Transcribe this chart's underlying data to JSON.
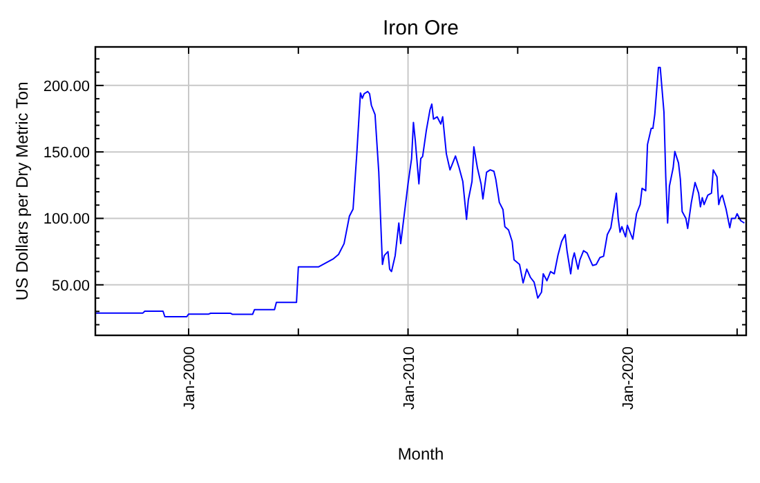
{
  "chart_data": {
    "type": "line",
    "title": "Iron Ore",
    "xlabel": "Month",
    "ylabel": "US Dollars per Dry Metric Ton",
    "x": [
      "1995-10",
      "1997-12",
      "1998-01",
      "1998-11",
      "1998-12",
      "1999-12",
      "2000-01",
      "2000-12",
      "2001-01",
      "2001-12",
      "2002-01",
      "2002-12",
      "2003-01",
      "2003-12",
      "2004-01",
      "2004-12",
      "2005-01",
      "2005-12",
      "2006-08",
      "2006-11",
      "2007-02",
      "2007-05",
      "2007-07",
      "2007-09",
      "2007-11",
      "2007-12",
      "2008-01",
      "2008-03",
      "2008-04",
      "2008-05",
      "2008-07",
      "2008-09",
      "2008-10",
      "2008-11",
      "2008-12",
      "2009-02",
      "2009-03",
      "2009-04",
      "2009-06",
      "2009-08",
      "2009-09",
      "2009-11",
      "2010-01",
      "2010-03",
      "2010-04",
      "2010-05",
      "2010-07",
      "2010-08",
      "2010-09",
      "2010-11",
      "2011-01",
      "2011-02",
      "2011-03",
      "2011-05",
      "2011-07",
      "2011-08",
      "2011-10",
      "2011-12",
      "2012-01",
      "2012-03",
      "2012-05",
      "2012-07",
      "2012-09",
      "2012-10",
      "2012-12",
      "2013-01",
      "2013-03",
      "2013-05",
      "2013-06",
      "2013-08",
      "2013-10",
      "2013-12",
      "2014-01",
      "2014-03",
      "2014-05",
      "2014-06",
      "2014-08",
      "2014-10",
      "2014-11",
      "2015-02",
      "2015-04",
      "2015-06",
      "2015-08",
      "2015-10",
      "2015-11",
      "2015-12",
      "2016-02",
      "2016-03",
      "2016-05",
      "2016-07",
      "2016-09",
      "2016-11",
      "2017-01",
      "2017-03",
      "2017-04",
      "2017-06",
      "2017-07",
      "2017-08",
      "2017-10",
      "2017-11",
      "2018-01",
      "2018-03",
      "2018-06",
      "2018-08",
      "2018-10",
      "2018-12",
      "2019-02",
      "2019-04",
      "2019-05",
      "2019-07",
      "2019-08",
      "2019-09",
      "2019-10",
      "2019-12",
      "2020-01",
      "2020-03",
      "2020-04",
      "2020-06",
      "2020-08",
      "2020-09",
      "2020-11",
      "2020-12",
      "2021-02",
      "2021-03",
      "2021-04",
      "2021-06",
      "2021-07",
      "2021-09",
      "2021-10",
      "2021-11",
      "2021-12",
      "2022-02",
      "2022-03",
      "2022-05",
      "2022-06",
      "2022-07",
      "2022-09",
      "2022-10",
      "2022-12",
      "2023-02",
      "2023-04",
      "2023-05",
      "2023-06",
      "2023-07",
      "2023-09",
      "2023-11",
      "2023-12",
      "2024-02",
      "2024-03",
      "2024-04",
      "2024-05",
      "2024-07",
      "2024-09",
      "2024-10",
      "2024-12",
      "2025-01",
      "2025-03",
      "2025-05"
    ],
    "series": [
      {
        "color": "#0000ff",
        "values": [
          28.8,
          28.8,
          30.2,
          30.2,
          26,
          26,
          28,
          28,
          28.6,
          28.6,
          27.8,
          27.8,
          31.3,
          31.3,
          36.8,
          36.8,
          63.5,
          63.5,
          69.4,
          72.9,
          81,
          101.7,
          107,
          148.6,
          194.4,
          190.3,
          193.8,
          195.5,
          193.8,
          185,
          178,
          134.7,
          100,
          65.3,
          72,
          75,
          61.8,
          60,
          72,
          96.5,
          81,
          103.5,
          126,
          145,
          172.2,
          159,
          126,
          145,
          146.5,
          166,
          181.6,
          186,
          174.7,
          176.4,
          171,
          176.4,
          148.6,
          136.5,
          140,
          146.9,
          138,
          127.8,
          99.3,
          113.9,
          127.8,
          153.8,
          138,
          126,
          114.6,
          134.7,
          136.5,
          135.4,
          129.5,
          112,
          106.6,
          93.8,
          91.3,
          82.6,
          68.8,
          65.3,
          51.4,
          61.8,
          55.6,
          52,
          46.2,
          40,
          44.4,
          58.3,
          53.1,
          60,
          58.3,
          72.2,
          82.6,
          87.8,
          75.7,
          58.3,
          68.8,
          74,
          61.8,
          68.8,
          75.7,
          74,
          64.6,
          65.3,
          70.5,
          71.5,
          87.8,
          93,
          101.7,
          119,
          100,
          89.6,
          93.8,
          86.1,
          94.8,
          87.8,
          84.4,
          103.5,
          110.4,
          122.6,
          120.8,
          155.6,
          167.7,
          167.7,
          178,
          213.5,
          213.5,
          179.9,
          131.2,
          96.5,
          124.3,
          138,
          150.3,
          141.7,
          129.5,
          105.2,
          100,
          92.4,
          112,
          127,
          119,
          108.7,
          115.6,
          110.4,
          117.4,
          119,
          136.5,
          131.3,
          110.4,
          115.6,
          117.4,
          107,
          93,
          100,
          100,
          103.5,
          98.3,
          96.5
        ]
      }
    ],
    "xlim": [
      "1995-10",
      "2025-06"
    ],
    "xticks": [
      {
        "value": "2000-01",
        "label": "Jan-2000"
      },
      {
        "value": "2005-01",
        "label": null
      },
      {
        "value": "2010-01",
        "label": "Jan-2010"
      },
      {
        "value": "2015-01",
        "label": null
      },
      {
        "value": "2020-01",
        "label": "Jan-2020"
      },
      {
        "value": "2025-01",
        "label": null
      }
    ],
    "ylim": [
      12,
      229
    ],
    "yticks": [
      {
        "value": 20,
        "label": null
      },
      {
        "value": 30,
        "label": null
      },
      {
        "value": 40,
        "label": null
      },
      {
        "value": 50,
        "label": "50.00"
      },
      {
        "value": 60,
        "label": null
      },
      {
        "value": 70,
        "label": null
      },
      {
        "value": 80,
        "label": null
      },
      {
        "value": 90,
        "label": null
      },
      {
        "value": 100,
        "label": "100.00"
      },
      {
        "value": 110,
        "label": null
      },
      {
        "value": 120,
        "label": null
      },
      {
        "value": 130,
        "label": null
      },
      {
        "value": 140,
        "label": null
      },
      {
        "value": 150,
        "label": "150.00"
      },
      {
        "value": 160,
        "label": null
      },
      {
        "value": 170,
        "label": null
      },
      {
        "value": 180,
        "label": null
      },
      {
        "value": 190,
        "label": null
      },
      {
        "value": 200,
        "label": "200.00"
      },
      {
        "value": 210,
        "label": null
      },
      {
        "value": 220,
        "label": null
      }
    ],
    "grid": true,
    "marker": "none",
    "line_style": "solid"
  }
}
